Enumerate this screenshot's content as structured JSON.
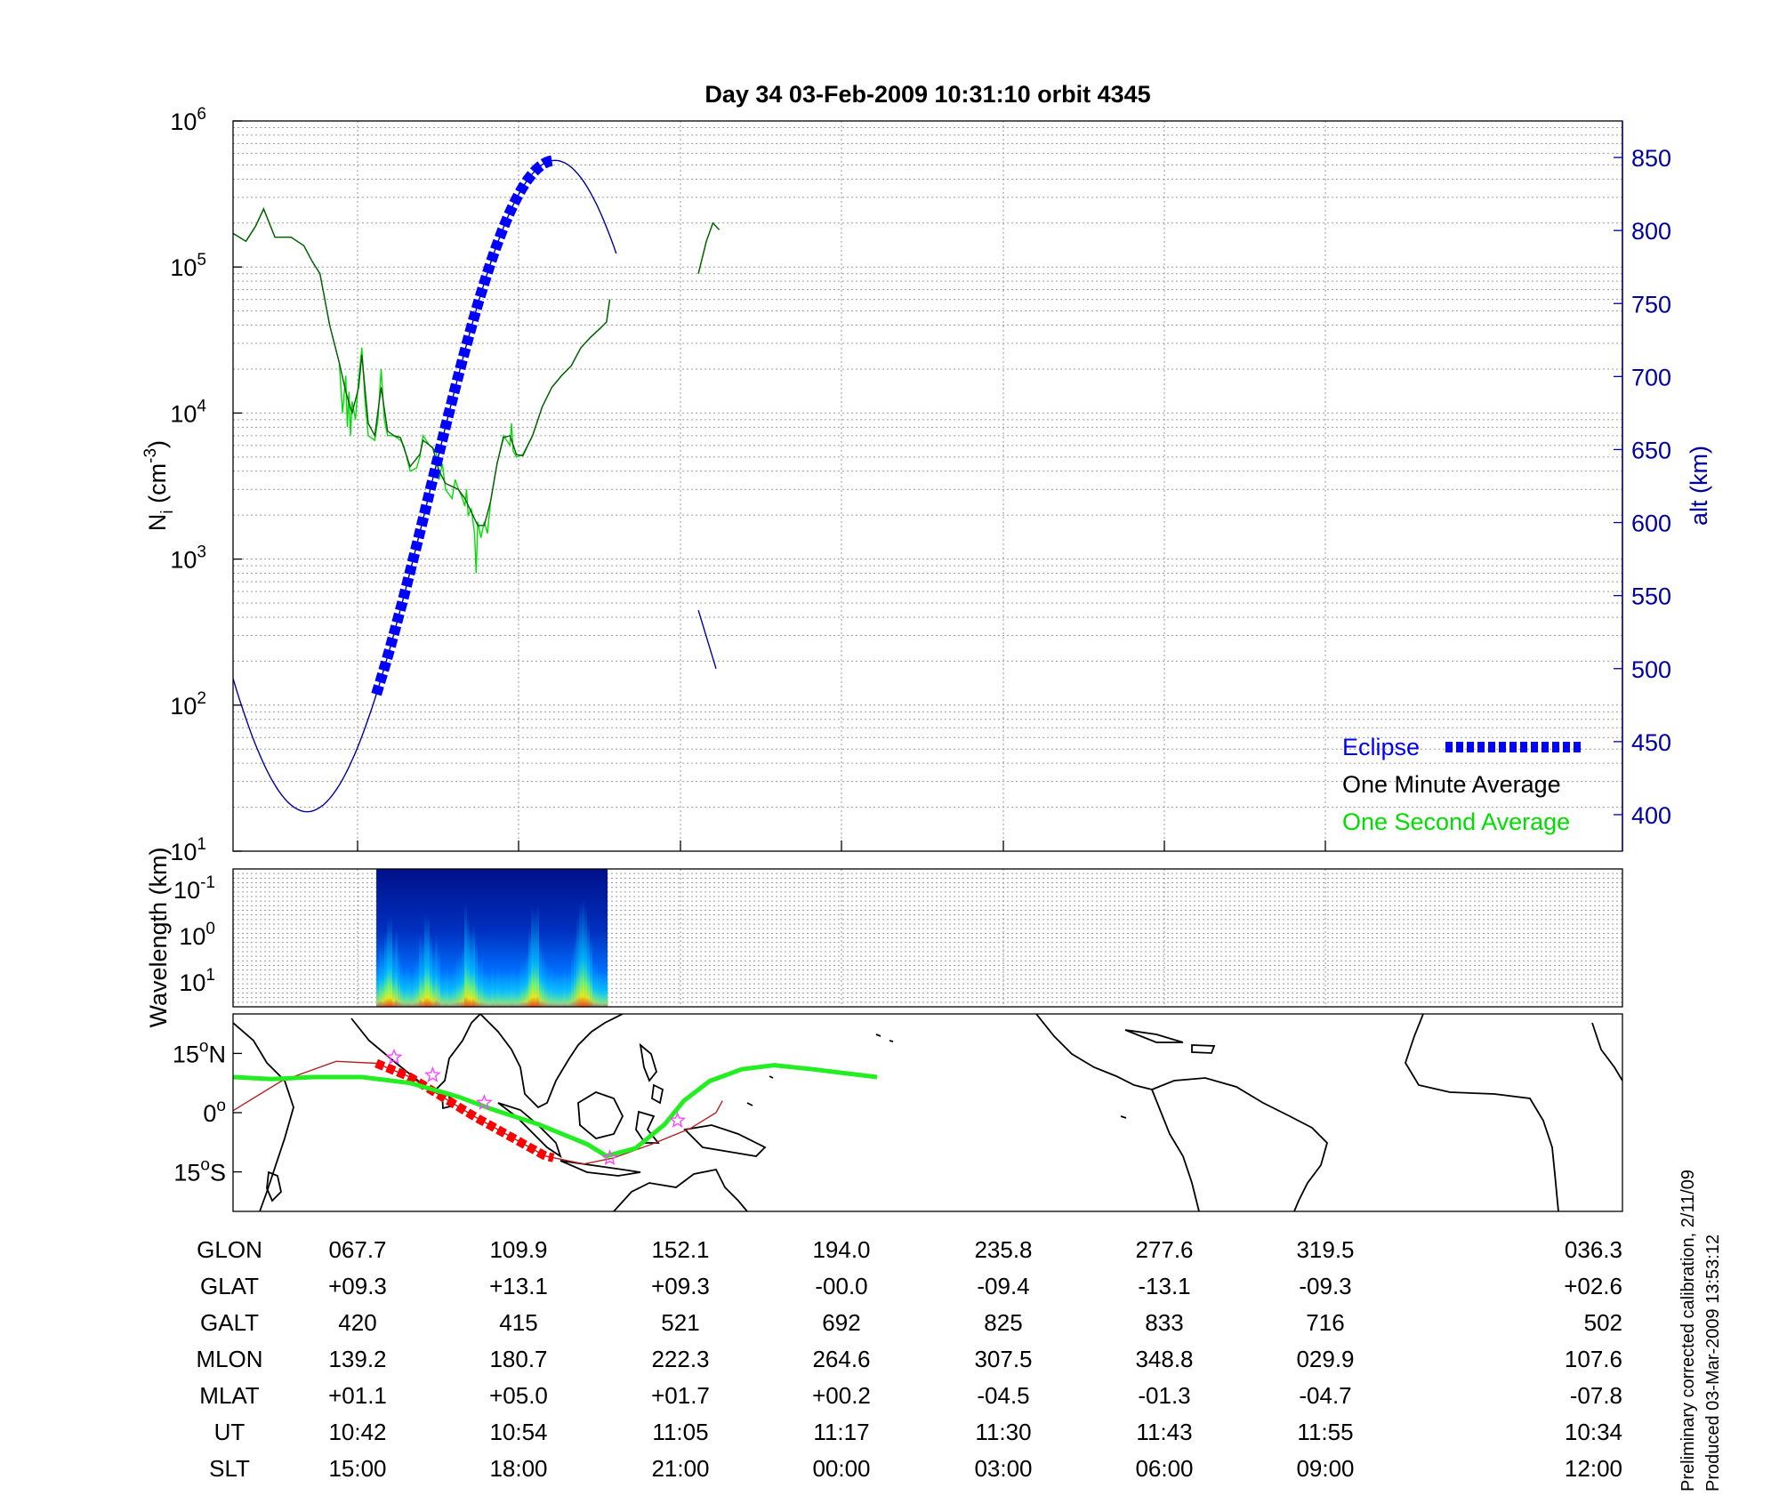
{
  "title": "Day 34  03-Feb-2009 10:31:10   orbit 4345",
  "colors": {
    "one_second": "#00dd00",
    "one_minute": "#0a5a0a",
    "altitude": "#0000a0",
    "eclipse": "#0000ff",
    "track": "#b22222",
    "track_eclipse": "#ff0000",
    "ground_fit": "#22ee22",
    "stars": "#ff44ff"
  },
  "chart_data": [
    {
      "type": "line",
      "panel": "density",
      "ylabel": "N",
      "ylabel_sub": "i",
      "ylabel_unit_base": " (cm",
      "ylabel_unit_exp": "-3",
      "ylabel_unit_close": ")",
      "y_scale": "log",
      "ylim": [
        10,
        1000000
      ],
      "y_ticks": [
        {
          "base": "10",
          "exp": "1"
        },
        {
          "base": "10",
          "exp": "2"
        },
        {
          "base": "10",
          "exp": "3"
        },
        {
          "base": "10",
          "exp": "4"
        },
        {
          "base": "10",
          "exp": "5"
        },
        {
          "base": "10",
          "exp": "6"
        }
      ],
      "y2label": "alt (km)",
      "y2lim": [
        375,
        875
      ],
      "y2_ticks": [
        "400",
        "450",
        "500",
        "550",
        "600",
        "650",
        "700",
        "750",
        "800",
        "850"
      ],
      "grid": true,
      "legend_position": "bottom-right",
      "series": [
        {
          "name": "One Second Average",
          "points": [
            [
              0,
              170000
            ],
            [
              0.04,
              150000
            ],
            [
              0.07,
              190000
            ],
            [
              0.095,
              250000
            ],
            [
              0.13,
              160000
            ],
            [
              0.18,
              160000
            ],
            [
              0.22,
              140000
            ],
            [
              0.245,
              110000
            ],
            [
              0.27,
              90000
            ],
            [
              0.3,
              40000
            ],
            [
              0.33,
              22000
            ],
            [
              0.34,
              10000
            ],
            [
              0.35,
              18000
            ],
            [
              0.355,
              8000
            ],
            [
              0.36,
              14000
            ],
            [
              0.365,
              7000
            ],
            [
              0.37,
              12000
            ],
            [
              0.38,
              9000
            ],
            [
              0.39,
              17000
            ],
            [
              0.4,
              28000
            ],
            [
              0.41,
              12000
            ],
            [
              0.42,
              7000
            ],
            [
              0.44,
              6500
            ],
            [
              0.45,
              9000
            ],
            [
              0.46,
              20000
            ],
            [
              0.47,
              9000
            ],
            [
              0.48,
              7000
            ],
            [
              0.5,
              7000
            ],
            [
              0.52,
              6500
            ],
            [
              0.53,
              6000
            ],
            [
              0.55,
              4000
            ],
            [
              0.57,
              4200
            ],
            [
              0.58,
              5000
            ],
            [
              0.59,
              7000
            ],
            [
              0.61,
              6000
            ],
            [
              0.63,
              5500
            ],
            [
              0.64,
              3500
            ],
            [
              0.65,
              4500
            ],
            [
              0.66,
              3000
            ],
            [
              0.68,
              2600
            ],
            [
              0.69,
              3500
            ],
            [
              0.7,
              3000
            ],
            [
              0.71,
              2700
            ],
            [
              0.72,
              2300
            ],
            [
              0.725,
              3000
            ],
            [
              0.73,
              2000
            ],
            [
              0.74,
              2200
            ],
            [
              0.75,
              1500
            ],
            [
              0.755,
              800
            ],
            [
              0.76,
              1800
            ],
            [
              0.77,
              1400
            ],
            [
              0.78,
              1800
            ],
            [
              0.79,
              1500
            ],
            [
              0.8,
              2500
            ],
            [
              0.82,
              4500
            ],
            [
              0.84,
              7000
            ],
            [
              0.86,
              6000
            ],
            [
              0.865,
              8500
            ],
            [
              0.87,
              5500
            ],
            [
              0.88,
              5000
            ],
            [
              0.9,
              5200
            ],
            [
              0.93,
              7000
            ],
            [
              0.96,
              11000
            ],
            [
              0.99,
              15000
            ],
            [
              1.02,
              18000
            ],
            [
              1.05,
              21000
            ],
            [
              1.08,
              28000
            ],
            [
              1.11,
              33000
            ],
            [
              1.14,
              38000
            ],
            [
              1.16,
              42000
            ],
            [
              1.17,
              60000
            ]
          ],
          "segments_after": [
            [
              1.445,
              90000
            ],
            [
              1.47,
              150000
            ],
            [
              1.49,
              200000
            ],
            [
              1.51,
              180000
            ]
          ]
        },
        {
          "name": "One Minute Average",
          "points": [
            [
              0,
              170000
            ],
            [
              0.04,
              150000
            ],
            [
              0.07,
              190000
            ],
            [
              0.095,
              250000
            ],
            [
              0.13,
              160000
            ],
            [
              0.18,
              160000
            ],
            [
              0.22,
              140000
            ],
            [
              0.245,
              110000
            ],
            [
              0.27,
              90000
            ],
            [
              0.3,
              40000
            ],
            [
              0.33,
              22000
            ],
            [
              0.35,
              14000
            ],
            [
              0.37,
              10000
            ],
            [
              0.39,
              15000
            ],
            [
              0.4,
              25000
            ],
            [
              0.42,
              8500
            ],
            [
              0.44,
              7000
            ],
            [
              0.46,
              15000
            ],
            [
              0.48,
              7500
            ],
            [
              0.5,
              7000
            ],
            [
              0.52,
              6800
            ],
            [
              0.55,
              4300
            ],
            [
              0.58,
              5200
            ],
            [
              0.59,
              6500
            ],
            [
              0.62,
              5800
            ],
            [
              0.64,
              4000
            ],
            [
              0.66,
              3300
            ],
            [
              0.7,
              3000
            ],
            [
              0.72,
              2600
            ],
            [
              0.74,
              2100
            ],
            [
              0.76,
              1700
            ],
            [
              0.78,
              1700
            ],
            [
              0.8,
              2500
            ],
            [
              0.82,
              4500
            ],
            [
              0.84,
              6800
            ],
            [
              0.86,
              7000
            ],
            [
              0.88,
              5200
            ],
            [
              0.9,
              5100
            ],
            [
              0.93,
              7000
            ],
            [
              0.96,
              11000
            ],
            [
              0.99,
              15000
            ],
            [
              1.02,
              18000
            ],
            [
              1.05,
              21000
            ],
            [
              1.08,
              28000
            ],
            [
              1.11,
              33000
            ],
            [
              1.14,
              38000
            ],
            [
              1.16,
              42000
            ],
            [
              1.17,
              60000
            ]
          ],
          "segments_after": [
            [
              1.445,
              90000
            ],
            [
              1.47,
              150000
            ],
            [
              1.49,
              200000
            ],
            [
              1.51,
              180000
            ]
          ]
        },
        {
          "name": "Eclipse",
          "axis": "right",
          "x_range": [
            0.445,
            1.0
          ],
          "description_of_points": "altitude during eclipse"
        }
      ],
      "altitude_series": {
        "axis": "right",
        "min_alt_km": 402,
        "min_at": 0.23,
        "max_alt_km": 848,
        "max_at": 1.0,
        "ends_at": 1.19,
        "resumes": [
          [
            1.445,
            540
          ],
          [
            1.5,
            500
          ]
        ]
      }
    },
    {
      "type": "heatmap",
      "panel": "spectrogram",
      "ylabel": "Wavelength (km)",
      "y_ticks": [
        {
          "base": "10",
          "exp": "-1"
        },
        {
          "base": "10",
          "exp": "0"
        },
        {
          "base": "10",
          "exp": "1"
        }
      ],
      "x_range": [
        0.445,
        1.163
      ],
      "colormap": "jet"
    },
    {
      "type": "scatter",
      "panel": "ground_track",
      "y_ticks": [
        {
          "base": "15",
          "deg": "o",
          "hemi": "N"
        },
        {
          "base": "0",
          "deg": "o",
          "hemi": ""
        },
        {
          "base": "15",
          "deg": "o",
          "hemi": "S"
        }
      ],
      "ylim": [
        -25,
        25
      ],
      "track": [
        [
          0,
          0.5
        ],
        [
          0.15,
          8
        ],
        [
          0.32,
          13
        ],
        [
          0.445,
          12.5
        ],
        [
          0.55,
          9
        ],
        [
          0.65,
          4
        ],
        [
          0.75,
          -1
        ],
        [
          0.86,
          -6
        ],
        [
          0.97,
          -11
        ],
        [
          1.09,
          -13
        ],
        [
          1.18,
          -11.5
        ],
        [
          1.3,
          -8
        ],
        [
          1.42,
          -4
        ],
        [
          1.5,
          0
        ],
        [
          1.52,
          3
        ]
      ],
      "eclipse_range": [
        0.445,
        1.0
      ],
      "ground_fit": [
        [
          0,
          9
        ],
        [
          0.12,
          8.5
        ],
        [
          0.25,
          9
        ],
        [
          0.4,
          9
        ],
        [
          0.55,
          7.5
        ],
        [
          0.7,
          4
        ],
        [
          0.8,
          1
        ],
        [
          0.95,
          -3
        ],
        [
          1.1,
          -8
        ],
        [
          1.16,
          -11
        ],
        [
          1.25,
          -9
        ],
        [
          1.34,
          -3
        ],
        [
          1.4,
          3
        ],
        [
          1.48,
          8
        ],
        [
          1.58,
          11
        ],
        [
          1.68,
          12
        ],
        [
          1.8,
          11
        ],
        [
          1.9,
          10
        ],
        [
          2.0,
          9
        ]
      ],
      "stars": [
        [
          0.5,
          14
        ],
        [
          0.62,
          9.5
        ],
        [
          0.78,
          2.5
        ],
        [
          1.17,
          -11.5
        ],
        [
          1.38,
          -2
        ]
      ]
    }
  ],
  "table": {
    "row_labels": [
      "GLON",
      "GLAT",
      "GALT",
      "MLON",
      "MLAT",
      "UT",
      "SLT"
    ],
    "columns": [
      [
        "067.7",
        "+09.3",
        "420",
        "139.2",
        "+01.1",
        "10:42",
        "15:00"
      ],
      [
        "109.9",
        "+13.1",
        "415",
        "180.7",
        "+05.0",
        "10:54",
        "18:00"
      ],
      [
        "152.1",
        "+09.3",
        "521",
        "222.3",
        "+01.7",
        "11:05",
        "21:00"
      ],
      [
        "194.0",
        "-00.0",
        "692",
        "264.6",
        "+00.2",
        "11:17",
        "00:00"
      ],
      [
        "235.8",
        "-09.4",
        "825",
        "307.5",
        "-04.5",
        "11:30",
        "03:00"
      ],
      [
        "277.6",
        "-13.1",
        "833",
        "348.8",
        "-01.3",
        "11:43",
        "06:00"
      ],
      [
        "319.5",
        "-09.3",
        "716",
        "029.9",
        "-04.7",
        "11:55",
        "09:00"
      ],
      [
        "036.3",
        "+02.6",
        "502",
        "107.6",
        "-07.8",
        "10:34",
        "12:00"
      ]
    ]
  },
  "footer": {
    "line1": "Preliminary corrected calibration, 2/11/09",
    "line2": "Produced 03-Mar-2009 13:53:12"
  }
}
